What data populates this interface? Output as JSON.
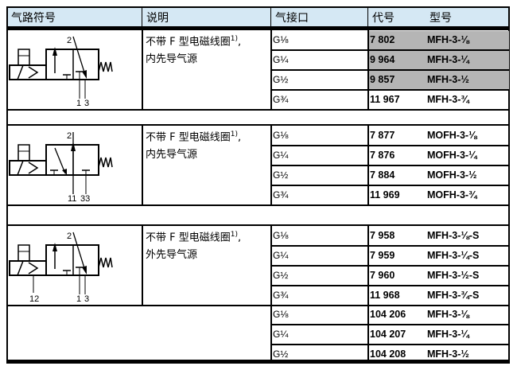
{
  "header": {
    "symbol": "气路符号",
    "description": "说明",
    "port": "气接口",
    "code": "代号",
    "model": "型号"
  },
  "colors": {
    "header_bg": "#d5e8f4",
    "highlight": "#b5b5b5"
  },
  "sections": [
    {
      "desc_line1": "不带 F 型电磁线圈",
      "sup": "1)",
      "comma": ",",
      "desc_line2": "内先导气源",
      "ports": {
        "out": "2",
        "in": "1",
        "exhaust": "3",
        "pilot": ""
      },
      "rows": [
        {
          "port": "G⅛",
          "code": "7 802",
          "model": "MFH-3-⅛",
          "highlighted": true
        },
        {
          "port": "G¼",
          "code": "9 964",
          "model": "MFH-3-¼",
          "highlighted": true
        },
        {
          "port": "G½",
          "code": "9 857",
          "model": "MFH-3-½",
          "highlighted": true
        },
        {
          "port": "G¾",
          "code": "11 967",
          "model": "MFH-3-¾",
          "highlighted": false
        }
      ]
    },
    {
      "desc_line1": "不带 F 型电磁线圈",
      "sup": "1)",
      "comma": ",",
      "desc_line2": "内先导气源",
      "ports": {
        "out": "2",
        "in": "11",
        "exhaust": "33",
        "pilot": ""
      },
      "rows": [
        {
          "port": "G⅛",
          "code": "7 877",
          "model": "MOFH-3-⅛",
          "highlighted": false
        },
        {
          "port": "G¼",
          "code": "7 876",
          "model": "MOFH-3-¼",
          "highlighted": false
        },
        {
          "port": "G½",
          "code": "7 884",
          "model": "MOFH-3-½",
          "highlighted": false
        },
        {
          "port": "G¾",
          "code": "11 969",
          "model": "MOFH-3-¾",
          "highlighted": false
        }
      ]
    },
    {
      "desc_line1": "不带 F 型电磁线圈",
      "sup": "1)",
      "comma": ",",
      "desc_line2": "外先导气源",
      "ports": {
        "out": "2",
        "in": "1",
        "exhaust": "3",
        "pilot": "12"
      },
      "rows": [
        {
          "port": "G⅛",
          "code": "7 958",
          "model": "MFH-3-⅛-S",
          "highlighted": false
        },
        {
          "port": "G¼",
          "code": "7 959",
          "model": "MFH-3-¼-S",
          "highlighted": false
        },
        {
          "port": "G½",
          "code": "7 960",
          "model": "MFH-3-½-S",
          "highlighted": false
        },
        {
          "port": "G¾",
          "code": "11 968",
          "model": "MFH-3-¾-S",
          "highlighted": false
        }
      ]
    },
    {
      "rows": [
        {
          "port": "G⅛",
          "code": "104 206",
          "model": "MFH-3-⅛",
          "highlighted": false
        },
        {
          "port": "G¼",
          "code": "104 207",
          "model": "MFH-3-¼",
          "highlighted": false
        },
        {
          "port": "G½",
          "code": "104 208",
          "model": "MFH-3-½",
          "highlighted": false
        }
      ]
    }
  ]
}
